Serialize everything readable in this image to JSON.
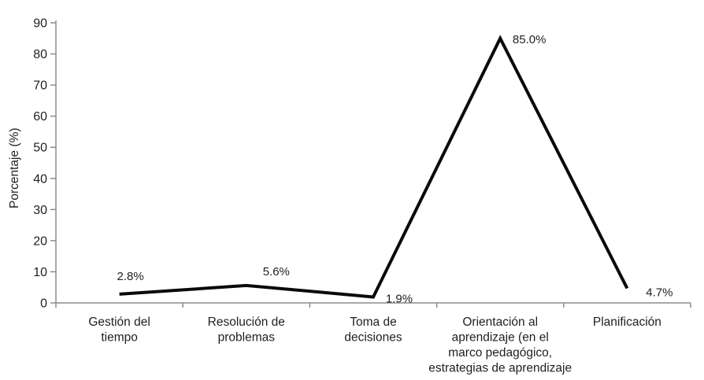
{
  "chart_data": {
    "type": "line",
    "title": "",
    "xlabel": "",
    "ylabel": "Porcentaje (%)",
    "ylim": [
      0,
      90
    ],
    "yticks": [
      0,
      10,
      20,
      30,
      40,
      50,
      60,
      70,
      80,
      90
    ],
    "grid": false,
    "legend_position": "none",
    "categories": [
      "Gestión del\ntiempo",
      "Resolución de\nproblemas",
      "Toma de\ndecisiones",
      "Orientación al\naprendizaje (en el\nmarco pedagógico,\nestrategias de aprendizaje",
      "Planificación"
    ],
    "series": [
      {
        "name": "Porcentaje",
        "values": [
          2.8,
          5.6,
          1.9,
          85.0,
          4.7
        ],
        "data_labels": [
          "2.8%",
          "5.6%",
          "1.9%",
          "85.0%",
          "4.7%"
        ]
      }
    ],
    "colors": {
      "line": "#0a0a0a",
      "axis": "#8c8c8c",
      "text": "#1f1f1f"
    }
  }
}
